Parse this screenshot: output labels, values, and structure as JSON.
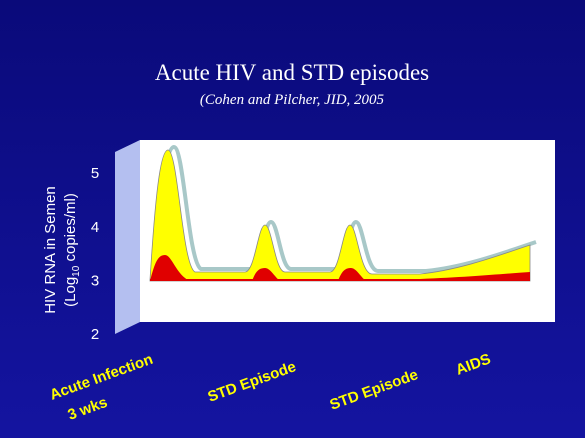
{
  "chart_data": {
    "type": "area",
    "title": "Acute HIV and STD episodes",
    "subtitle": "(Cohen and Pilcher, JID, 2005",
    "y_label": [
      "HIV RNA in Semen",
      "(Log",
      "10",
      " copies/ml)"
    ],
    "categories": [
      "Acute Infection",
      "3 wks",
      "STD Episode",
      "STD Episode",
      "AIDS"
    ],
    "ylim": [
      2,
      5.6
    ],
    "yticks": [
      2,
      3,
      4,
      5
    ],
    "colors": {
      "background": "#0c0c8c",
      "plot": "#ffffff",
      "wall": "#b4bff0",
      "area": "#ffff00",
      "outline": "#a8c8c8",
      "inner": "#e00000"
    }
  }
}
